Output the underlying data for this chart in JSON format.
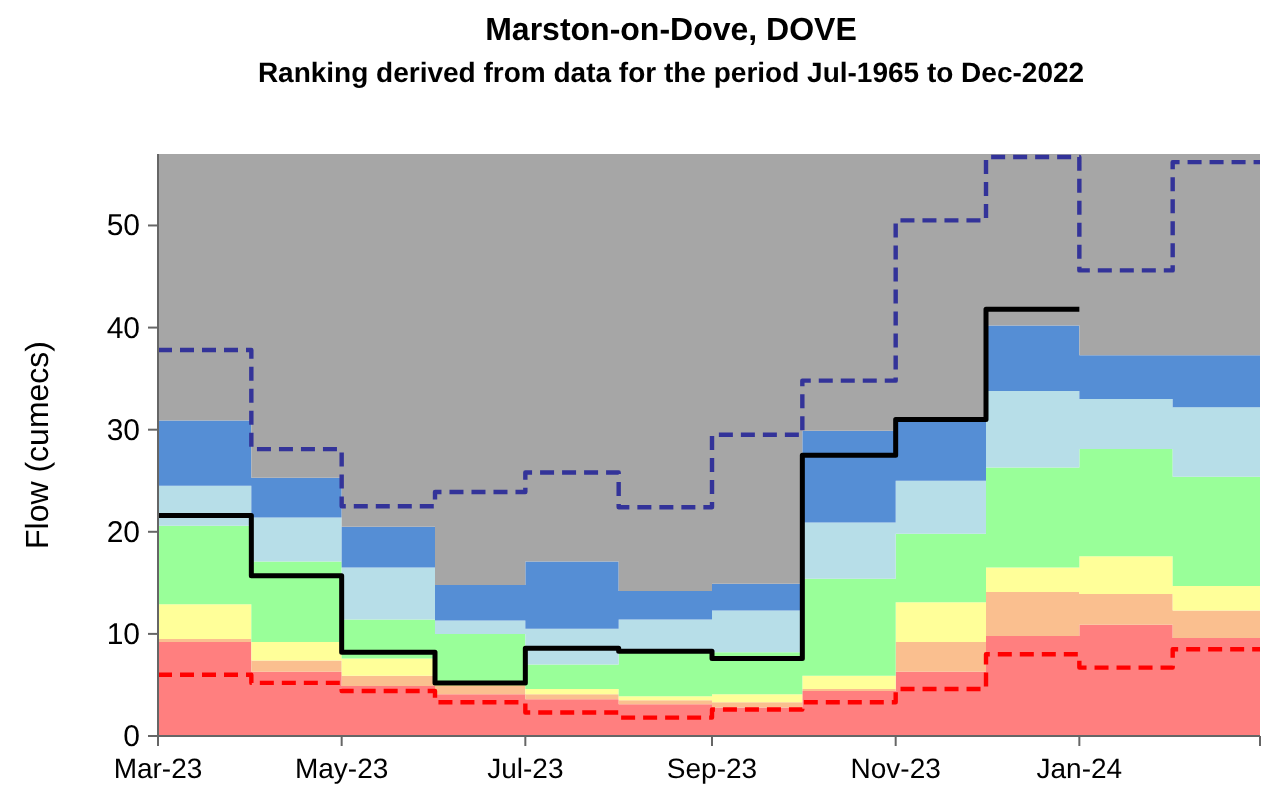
{
  "chart_data": {
    "type": "area",
    "stacked": true,
    "title": "Marston-on-Dove, DOVE",
    "subtitle": "Ranking derived from data for the period Jul-1965 to Dec-2022",
    "ylabel": "Flow (cumecs)",
    "x": [
      "2023-03",
      "2023-04",
      "2023-05",
      "2023-06",
      "2023-07",
      "2023-08",
      "2023-09",
      "2023-10",
      "2023-11",
      "2023-12",
      "2024-01",
      "2024-02",
      "2024-03"
    ],
    "xlim": [
      "2023-03",
      "2024-03"
    ],
    "xticks": [
      {
        "value": "2023-03",
        "label": "Mar-23"
      },
      {
        "value": "2023-05",
        "label": "May-23"
      },
      {
        "value": "2023-07",
        "label": "Jul-23"
      },
      {
        "value": "2023-09",
        "label": "Sep-23"
      },
      {
        "value": "2023-11",
        "label": "Nov-23"
      },
      {
        "value": "2024-01",
        "label": "Jan-24"
      },
      {
        "value": "2024-03",
        "label": null
      }
    ],
    "ylim": [
      0,
      57
    ],
    "yticks": [
      0,
      10,
      20,
      30,
      40,
      50
    ],
    "grid": false,
    "series": [
      {
        "color": "#ff7f7f",
        "values": [
          9.2,
          6.3,
          4.9,
          4.1,
          3.6,
          3.1,
          2.8,
          4.4,
          6.3,
          9.8,
          10.9,
          9.6,
          9.6
        ]
      },
      {
        "color": "#fabf8f",
        "values": [
          0.3,
          1.1,
          1.0,
          0.8,
          0.5,
          0.4,
          0.5,
          0.2,
          2.9,
          4.3,
          3.0,
          2.7,
          2.7
        ]
      },
      {
        "color": "#ffff99",
        "values": [
          3.4,
          1.8,
          1.7,
          0.1,
          0.5,
          0.4,
          0.8,
          1.3,
          3.9,
          2.4,
          3.7,
          2.4,
          2.4
        ]
      },
      {
        "color": "#99ff99",
        "values": [
          7.7,
          7.9,
          3.8,
          5.0,
          2.4,
          4.3,
          4.1,
          9.5,
          6.7,
          9.8,
          10.5,
          10.7,
          10.7
        ]
      },
      {
        "color": "#b7dee8",
        "values": [
          3.9,
          4.3,
          5.1,
          1.3,
          3.5,
          3.2,
          4.1,
          5.5,
          5.2,
          7.5,
          4.9,
          6.8,
          6.8
        ]
      },
      {
        "color": "#558ed5",
        "values": [
          6.4,
          3.9,
          4.0,
          3.5,
          6.6,
          2.8,
          2.6,
          9.0,
          6.0,
          6.4,
          4.3,
          5.1,
          5.1
        ]
      },
      {
        "color": "#a6a6a6",
        "values": [
          26.1,
          31.7,
          36.5,
          42.2,
          39.9,
          42.8,
          42.1,
          27.1,
          26.0,
          16.8,
          19.7,
          19.7,
          19.7
        ]
      },
      {
        "type": "step",
        "color": "#333399",
        "line_style": "dashed",
        "values": [
          37.8,
          28.1,
          22.5,
          23.9,
          25.8,
          22.4,
          29.5,
          34.8,
          50.5,
          56.7,
          45.6,
          56.2,
          56.2
        ]
      },
      {
        "type": "step",
        "color": "#ff0000",
        "line_style": "dashed",
        "values": [
          6.0,
          5.2,
          4.4,
          3.3,
          2.3,
          1.8,
          2.6,
          3.3,
          4.6,
          8.0,
          6.7,
          8.5,
          8.5
        ]
      },
      {
        "type": "step",
        "color": "#000000",
        "line_style": "solid",
        "values": [
          21.6,
          15.7,
          8.2,
          5.2,
          8.6,
          8.3,
          7.6,
          27.5,
          31.0,
          41.8,
          41.8,
          null,
          null
        ]
      }
    ]
  }
}
